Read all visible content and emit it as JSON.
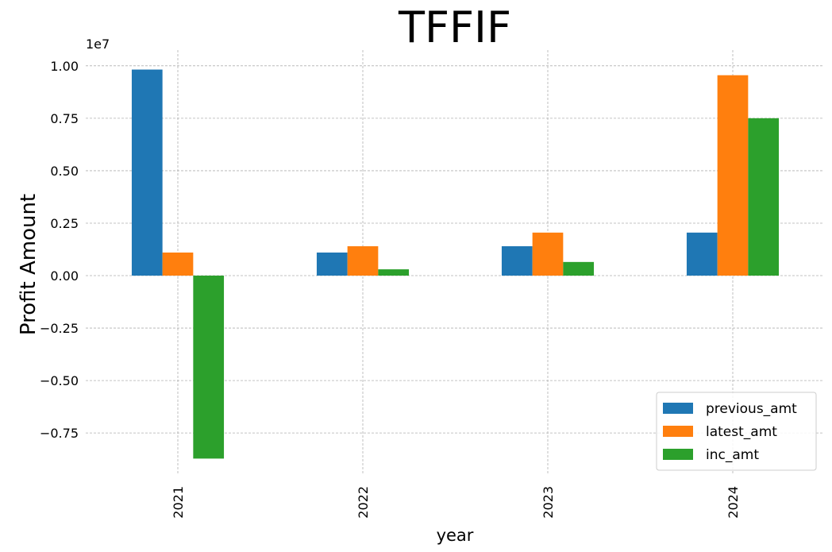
{
  "chart_data": {
    "type": "bar",
    "title": "TFFIF",
    "xlabel": "year",
    "ylabel": "Profit Amount",
    "y_scale_label": "1e7",
    "categories": [
      "2021",
      "2022",
      "2023",
      "2024"
    ],
    "series": [
      {
        "name": "previous_amt",
        "color": "#1f77b4",
        "values": [
          9820000,
          1100000,
          1400000,
          2050000
        ]
      },
      {
        "name": "latest_amt",
        "color": "#ff7f0e",
        "values": [
          1100000,
          1400000,
          2050000,
          9550000
        ]
      },
      {
        "name": "inc_amt",
        "color": "#2ca02c",
        "values": [
          -8720000,
          300000,
          650000,
          7500000
        ]
      }
    ],
    "ylim": [
      -9500000,
      10750000
    ],
    "yticks": [
      -7500000,
      -5000000,
      -2500000,
      0,
      2500000,
      5000000,
      7500000,
      10000000
    ],
    "ytick_labels": [
      "−0.75",
      "−0.50",
      "−0.25",
      "0.00",
      "0.25",
      "0.50",
      "0.75",
      "1.00"
    ],
    "grid": true,
    "legend_position": "lower-right"
  }
}
